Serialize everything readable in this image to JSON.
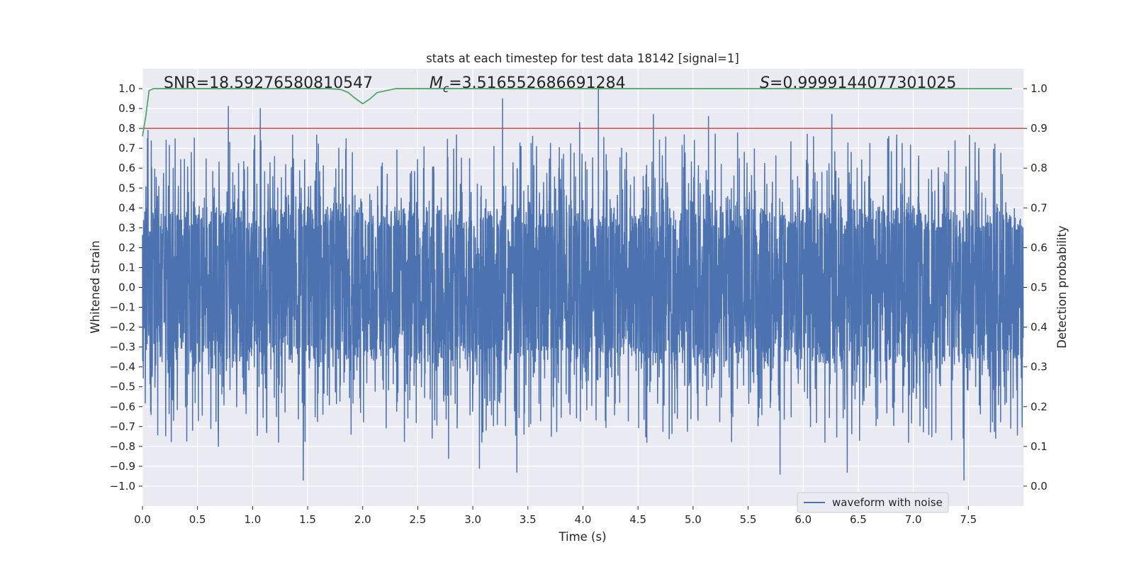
{
  "chart_data": {
    "type": "line",
    "title": "stats at each timestep for test data 18142 [signal=1]",
    "xlabel": "Time (s)",
    "ylabel_left": "Whitened strain",
    "ylabel_right": "Detection probability",
    "xlim": [
      0.0,
      8.0
    ],
    "ylim_left": [
      -1.1,
      1.1
    ],
    "ylim_right": [
      -0.05,
      1.05
    ],
    "grid": true,
    "x_ticks": [
      "0.0",
      "0.5",
      "1.0",
      "1.5",
      "2.0",
      "2.5",
      "3.0",
      "3.5",
      "4.0",
      "4.5",
      "5.0",
      "5.5",
      "6.0",
      "6.5",
      "7.0",
      "7.5"
    ],
    "y_ticks_left": [
      "1.0",
      "0.9",
      "0.8",
      "0.7",
      "0.6",
      "0.5",
      "0.4",
      "0.3",
      "0.2",
      "0.1",
      "0.0",
      "-0.1",
      "-0.2",
      "-0.3",
      "-0.4",
      "-0.5",
      "-0.6",
      "-0.7",
      "-0.8",
      "-0.9",
      "-1.0"
    ],
    "y_ticks_right": [
      "1.0",
      "0.9",
      "0.8",
      "0.7",
      "0.6",
      "0.5",
      "0.4",
      "0.3",
      "0.2",
      "0.1",
      "0.0"
    ],
    "annotations": {
      "snr": "SNR=18.59276580810547",
      "mc_symbol": "M",
      "mc_sub": "c",
      "mc_value": "=3.516552686691284",
      "s_symbol": "S",
      "s_value": "=0.9999144077301025"
    },
    "legend": {
      "label": "waveform with noise",
      "location": "lower-right"
    },
    "threshold": {
      "axis": "right",
      "value": 0.9,
      "color": "#c44e52"
    },
    "series": [
      {
        "name": "waveform with noise",
        "axis": "left",
        "color": "#4c72b0",
        "seed": 18142,
        "sample_count": 4096,
        "duration_s": 8.0,
        "typical_band": [
          -0.38,
          0.4
        ],
        "spike_peaks": [
          {
            "x": 0.05,
            "y": 0.79
          },
          {
            "x": 0.69,
            "y": 1.0
          },
          {
            "x": 0.78,
            "y": 0.91
          },
          {
            "x": 1.07,
            "y": 0.9
          },
          {
            "x": 3.27,
            "y": 0.95
          },
          {
            "x": 3.97,
            "y": 0.83
          },
          {
            "x": 4.14,
            "y": 1.0
          },
          {
            "x": 4.64,
            "y": 0.87
          },
          {
            "x": 5.14,
            "y": 0.86
          },
          {
            "x": 6.26,
            "y": 0.87
          },
          {
            "x": 0.69,
            "y": -0.8
          },
          {
            "x": 1.46,
            "y": -0.97
          },
          {
            "x": 3.06,
            "y": -0.91
          },
          {
            "x": 3.4,
            "y": -0.93
          },
          {
            "x": 5.79,
            "y": -0.94
          },
          {
            "x": 6.4,
            "y": -0.93
          },
          {
            "x": 7.46,
            "y": -0.97
          },
          {
            "x": 2.78,
            "y": -0.86
          }
        ]
      },
      {
        "name": "detection probability",
        "axis": "right",
        "color": "#55a868",
        "x": [
          0.0,
          0.03,
          0.06,
          0.1,
          0.2,
          1.7,
          1.8,
          1.87,
          1.93,
          2.0,
          2.07,
          2.13,
          2.3,
          8.0
        ],
        "y": [
          0.88,
          0.93,
          0.995,
          1.0,
          1.0,
          1.0,
          0.998,
          0.99,
          0.976,
          0.962,
          0.975,
          0.99,
          1.0,
          1.0
        ]
      }
    ]
  }
}
